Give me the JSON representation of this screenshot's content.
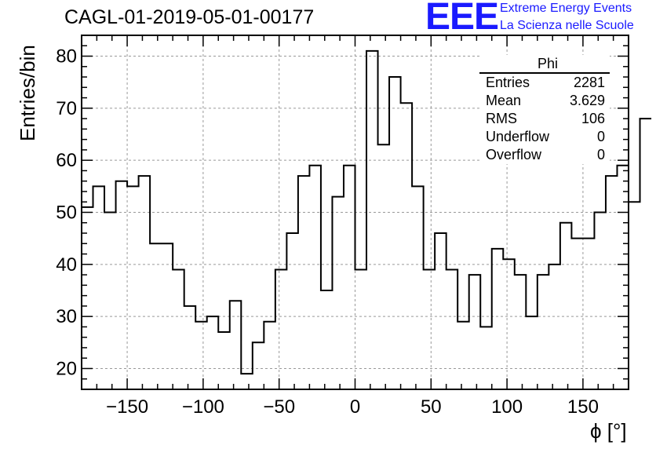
{
  "title": "CAGL-01-2019-05-01-00177",
  "logo": {
    "mark": "EEE",
    "line1": "Extreme Energy Events",
    "line2": "La Scienza nelle Scuole",
    "color": "#1a1aff"
  },
  "stats_box": {
    "name": "Phi",
    "rows": [
      {
        "label": "Entries",
        "value": "2281"
      },
      {
        "label": "Mean",
        "value": "3.629"
      },
      {
        "label": "RMS",
        "value": "106"
      },
      {
        "label": "Underflow",
        "value": "0"
      },
      {
        "label": "Overflow",
        "value": "0"
      }
    ]
  },
  "chart_data": {
    "type": "histogram",
    "title": "CAGL-01-2019-05-01-00177",
    "xlabel": "ϕ [°]",
    "ylabel": "Entries/bin",
    "xlim": [
      -180,
      180
    ],
    "ylim": [
      16,
      84
    ],
    "bin_width": 7.5,
    "bin_edges_start": -180,
    "values": [
      51,
      55,
      50,
      56,
      55,
      57,
      44,
      44,
      39,
      32,
      29,
      30,
      27,
      33,
      19,
      25,
      29,
      39,
      46,
      57,
      59,
      35,
      53,
      59,
      39,
      81,
      63,
      76,
      71,
      55,
      39,
      46,
      39,
      29,
      38,
      28,
      43,
      41,
      38,
      30,
      38,
      40,
      48,
      45,
      45,
      50,
      57,
      59,
      52,
      68
    ],
    "x_ticks": [
      -150,
      -100,
      -50,
      0,
      50,
      100,
      150
    ],
    "x_tick_labels": [
      "−150",
      "−100",
      "−50",
      "0",
      "50",
      "100",
      "150"
    ],
    "y_ticks": [
      20,
      30,
      40,
      50,
      60,
      70,
      80
    ],
    "y_tick_labels": [
      "20",
      "30",
      "40",
      "50",
      "60",
      "70",
      "80"
    ],
    "grid": true,
    "line_color": "#000000",
    "grid_color": "#999999"
  }
}
